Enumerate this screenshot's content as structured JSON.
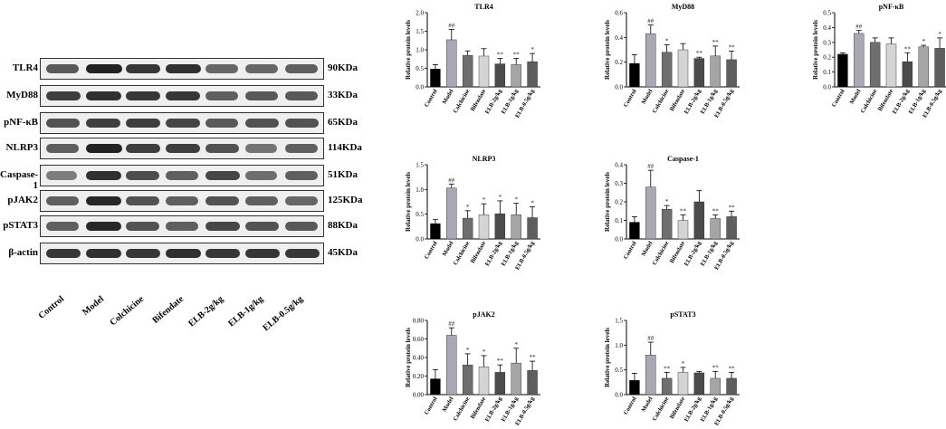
{
  "blot": {
    "rows": [
      {
        "label": "TLR4",
        "kda": "90KDa",
        "intensity": [
          0.55,
          0.95,
          0.8,
          0.85,
          0.45,
          0.45,
          0.5
        ]
      },
      {
        "label": "MyD88",
        "kda": "33KDa",
        "intensity": [
          0.75,
          0.85,
          0.8,
          0.8,
          0.5,
          0.55,
          0.55
        ]
      },
      {
        "label": "pNF-κB",
        "kda": "65KDa",
        "intensity": [
          0.6,
          0.75,
          0.75,
          0.7,
          0.55,
          0.6,
          0.6
        ]
      },
      {
        "label": "NLRP3",
        "kda": "114KDa",
        "intensity": [
          0.5,
          0.95,
          0.75,
          0.75,
          0.6,
          0.35,
          0.5
        ]
      },
      {
        "label": "Caspase-1",
        "kda": "51KDa",
        "intensity": [
          0.3,
          0.85,
          0.65,
          0.5,
          0.7,
          0.4,
          0.5
        ]
      },
      {
        "label": "pJAK2",
        "kda": "125KDa",
        "intensity": [
          0.5,
          0.9,
          0.6,
          0.5,
          0.6,
          0.5,
          0.45
        ]
      },
      {
        "label": "pSTAT3",
        "kda": "88KDa",
        "intensity": [
          0.5,
          0.9,
          0.6,
          0.5,
          0.7,
          0.6,
          0.55
        ]
      },
      {
        "label": "β-actin",
        "kda": "45KDa",
        "intensity": [
          0.8,
          0.85,
          0.8,
          0.85,
          0.8,
          0.8,
          0.8
        ]
      }
    ],
    "lanes": [
      "Control",
      "Model",
      "Colchicine",
      "Bifendate",
      "ELB-2g/kg",
      "ELB-1g/kg",
      "ELB-0.5g/kg"
    ]
  },
  "chart_data": [
    {
      "type": "bar",
      "title": "TLR4",
      "ylabel": "Relative protein levels",
      "ylim": [
        0,
        2.0
      ],
      "yticks": [
        0.0,
        0.5,
        1.0,
        1.5,
        2.0
      ],
      "categories": [
        "Control",
        "Model",
        "Colchicine",
        "Bifendate",
        "ELB-2g/kg",
        "ELB-1g/kg",
        "ELB-0.5g/kg"
      ],
      "values": [
        0.48,
        1.27,
        0.85,
        0.83,
        0.62,
        0.6,
        0.68
      ],
      "errors": [
        0.12,
        0.28,
        0.12,
        0.2,
        0.15,
        0.17,
        0.22
      ],
      "marks": [
        "",
        "##",
        "",
        "",
        "**",
        "**",
        "*"
      ]
    },
    {
      "type": "bar",
      "title": "MyD88",
      "ylabel": "Relative protein levels",
      "ylim": [
        0,
        0.6
      ],
      "yticks": [
        0.0,
        0.2,
        0.4,
        0.6
      ],
      "categories": [
        "Control",
        "Model",
        "Colchicine",
        "Bifendate",
        "ELB-2g/kg",
        "ELB-1g/kg",
        "ELB-0.5g/kg"
      ],
      "values": [
        0.19,
        0.43,
        0.28,
        0.3,
        0.23,
        0.25,
        0.22
      ],
      "errors": [
        0.07,
        0.07,
        0.06,
        0.05,
        0.01,
        0.08,
        0.07
      ],
      "marks": [
        "",
        "##",
        "*",
        "",
        "**",
        "**",
        "**"
      ]
    },
    {
      "type": "bar",
      "title": "pNF-κB",
      "ylabel": "Relative protein levels",
      "ylim": [
        0,
        0.5
      ],
      "yticks": [
        0.0,
        0.1,
        0.2,
        0.3,
        0.4,
        0.5
      ],
      "categories": [
        "Control",
        "Model",
        "Colchicine",
        "Bifendate",
        "ELB-2g/kg",
        "ELB-1g/kg",
        "ELB-0.5g/kg"
      ],
      "values": [
        0.22,
        0.36,
        0.3,
        0.29,
        0.17,
        0.27,
        0.26
      ],
      "errors": [
        0.01,
        0.02,
        0.03,
        0.04,
        0.06,
        0.01,
        0.07
      ],
      "marks": [
        "",
        "##",
        "",
        "",
        "**",
        "*",
        "*"
      ]
    },
    {
      "type": "bar",
      "title": "NLRP3",
      "ylabel": "Relative protein levels",
      "ylim": [
        0,
        1.5
      ],
      "yticks": [
        0.0,
        0.5,
        1.0,
        1.5
      ],
      "categories": [
        "Control",
        "Model",
        "Colchicine",
        "Bifendate",
        "ELB-2g/kg",
        "ELB-1g/kg",
        "ELB-0.5g/kg"
      ],
      "values": [
        0.31,
        1.03,
        0.42,
        0.49,
        0.51,
        0.49,
        0.43
      ],
      "errors": [
        0.08,
        0.08,
        0.15,
        0.22,
        0.26,
        0.23,
        0.22
      ],
      "marks": [
        "",
        "##",
        "*",
        "*",
        "*",
        "*",
        "*"
      ]
    },
    {
      "type": "bar",
      "title": "Caspase-1",
      "ylabel": "Relative protein levels",
      "ylim": [
        0,
        0.4
      ],
      "yticks": [
        0.0,
        0.1,
        0.2,
        0.3,
        0.4
      ],
      "categories": [
        "Control",
        "Model",
        "Colchicine",
        "Bifendate",
        "ELB-2g/kg",
        "ELB-1g/kg",
        "ELB-0.5g/kg"
      ],
      "values": [
        0.09,
        0.28,
        0.16,
        0.1,
        0.2,
        0.11,
        0.12
      ],
      "errors": [
        0.03,
        0.09,
        0.02,
        0.03,
        0.06,
        0.02,
        0.03
      ],
      "marks": [
        "",
        "##",
        "*",
        "**",
        "",
        "**",
        "**"
      ]
    },
    {
      "type": "bar",
      "title": "pJAK2",
      "ylabel": "Relative protein levels",
      "ylim": [
        0,
        0.8
      ],
      "yticks": [
        0.0,
        0.2,
        0.4,
        0.6,
        0.8
      ],
      "categories": [
        "Control",
        "Model",
        "Colchicine",
        "Bifendate",
        "ELB-2g/kg",
        "ELB-1g/kg",
        "ELB-0.5g/kg"
      ],
      "values": [
        0.17,
        0.64,
        0.32,
        0.3,
        0.24,
        0.34,
        0.26
      ],
      "errors": [
        0.1,
        0.08,
        0.12,
        0.12,
        0.08,
        0.16,
        0.1
      ],
      "marks": [
        "",
        "##",
        "*",
        "*",
        "**",
        "*",
        "**"
      ]
    },
    {
      "type": "bar",
      "title": "pSTAT3",
      "ylabel": "Relative protein levels",
      "ylim": [
        0,
        1.5
      ],
      "yticks": [
        0.0,
        0.5,
        1.0,
        1.5
      ],
      "categories": [
        "Control",
        "Model",
        "Colchicine",
        "Bifendate",
        "ELB-2g/kg",
        "ELB-1g/kg",
        "ELB-0.5g/kg"
      ],
      "values": [
        0.29,
        0.8,
        0.33,
        0.45,
        0.44,
        0.33,
        0.33
      ],
      "errors": [
        0.14,
        0.26,
        0.12,
        0.1,
        0.03,
        0.14,
        0.12
      ],
      "marks": [
        "",
        "##",
        "**",
        "*",
        "",
        "**",
        "**"
      ]
    }
  ],
  "colors": [
    "#000000",
    "#a9a9b6",
    "#6e6e6e",
    "#d4d4d4",
    "#4b4b4b",
    "#a5a5a5",
    "#5e5e5e"
  ]
}
